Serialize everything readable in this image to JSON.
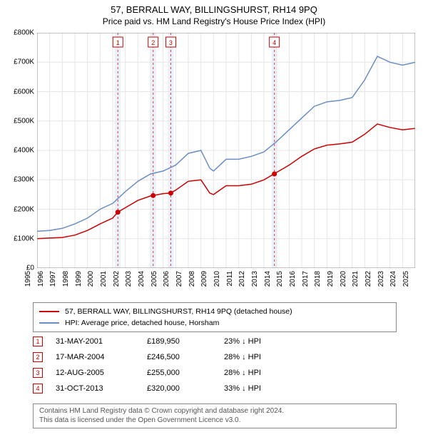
{
  "title": "57, BERRALL WAY, BILLINGSHURST, RH14 9PQ",
  "subtitle": "Price paid vs. HM Land Registry's House Price Index (HPI)",
  "chart": {
    "type": "line",
    "background_color": "#ffffff",
    "plot_border_color": "#888888",
    "grid_color": "#e6e6e6",
    "ylim": [
      0,
      800000
    ],
    "ytick_step": 100000,
    "yticks": [
      "£0",
      "£100K",
      "£200K",
      "£300K",
      "£400K",
      "£500K",
      "£600K",
      "£700K",
      "£800K"
    ],
    "xlim": [
      1995,
      2025
    ],
    "xticks": [
      "1995",
      "1996",
      "1997",
      "1998",
      "1999",
      "2000",
      "2001",
      "2002",
      "2003",
      "2004",
      "2005",
      "2006",
      "2007",
      "2008",
      "2009",
      "2010",
      "2011",
      "2012",
      "2013",
      "2014",
      "2015",
      "2016",
      "2017",
      "2018",
      "2019",
      "2020",
      "2021",
      "2022",
      "2023",
      "2024",
      "2025"
    ],
    "label_fontsize": 10,
    "line_width": 1.5,
    "event_band_color": "#eaf1fb",
    "event_line_color": "#d43f3a",
    "event_line_dash": "3,3",
    "series": [
      {
        "name": "hpi",
        "color": "#6b8ec4",
        "legend": "HPI: Average price, detached house, Horsham",
        "points": [
          [
            1995,
            125000
          ],
          [
            1996,
            128000
          ],
          [
            1997,
            135000
          ],
          [
            1998,
            150000
          ],
          [
            1999,
            170000
          ],
          [
            2000,
            200000
          ],
          [
            2001,
            220000
          ],
          [
            2002,
            260000
          ],
          [
            2003,
            295000
          ],
          [
            2004,
            320000
          ],
          [
            2005,
            330000
          ],
          [
            2006,
            350000
          ],
          [
            2007,
            390000
          ],
          [
            2008,
            400000
          ],
          [
            2008.7,
            340000
          ],
          [
            2009,
            330000
          ],
          [
            2010,
            370000
          ],
          [
            2011,
            370000
          ],
          [
            2012,
            380000
          ],
          [
            2013,
            395000
          ],
          [
            2014,
            430000
          ],
          [
            2015,
            470000
          ],
          [
            2016,
            510000
          ],
          [
            2017,
            550000
          ],
          [
            2018,
            565000
          ],
          [
            2019,
            570000
          ],
          [
            2020,
            580000
          ],
          [
            2021,
            640000
          ],
          [
            2022,
            720000
          ],
          [
            2023,
            700000
          ],
          [
            2024,
            690000
          ],
          [
            2025,
            700000
          ]
        ]
      },
      {
        "name": "property",
        "color": "#cc0000",
        "legend": "57, BERRALL WAY, BILLINGSHURST, RH14 9PQ (detached house)",
        "points": [
          [
            1995,
            100000
          ],
          [
            1996,
            102000
          ],
          [
            1997,
            104000
          ],
          [
            1998,
            112000
          ],
          [
            1999,
            128000
          ],
          [
            2000,
            150000
          ],
          [
            2001,
            170000
          ],
          [
            2001.4,
            190000
          ],
          [
            2002,
            205000
          ],
          [
            2003,
            230000
          ],
          [
            2004,
            245000
          ],
          [
            2004.2,
            246500
          ],
          [
            2005,
            253000
          ],
          [
            2005.6,
            255000
          ],
          [
            2006,
            265000
          ],
          [
            2007,
            295000
          ],
          [
            2008,
            300000
          ],
          [
            2008.7,
            255000
          ],
          [
            2009,
            250000
          ],
          [
            2010,
            280000
          ],
          [
            2011,
            280000
          ],
          [
            2012,
            285000
          ],
          [
            2013,
            300000
          ],
          [
            2013.8,
            320000
          ],
          [
            2014,
            325000
          ],
          [
            2015,
            350000
          ],
          [
            2016,
            380000
          ],
          [
            2017,
            405000
          ],
          [
            2018,
            418000
          ],
          [
            2019,
            422000
          ],
          [
            2020,
            428000
          ],
          [
            2021,
            455000
          ],
          [
            2022,
            490000
          ],
          [
            2023,
            478000
          ],
          [
            2024,
            470000
          ],
          [
            2025,
            475000
          ]
        ]
      }
    ],
    "events": [
      {
        "n": "1",
        "x": 2001.41,
        "date": "31-MAY-2001",
        "price": "£189,950",
        "diff": "23% ↓ HPI",
        "marker_color": "#cc0000"
      },
      {
        "n": "2",
        "x": 2004.21,
        "date": "17-MAR-2004",
        "price": "£246,500",
        "diff": "28% ↓ HPI",
        "marker_color": "#cc0000"
      },
      {
        "n": "3",
        "x": 2005.61,
        "date": "12-AUG-2005",
        "price": "£255,000",
        "diff": "28% ↓ HPI",
        "marker_color": "#cc0000"
      },
      {
        "n": "4",
        "x": 2013.83,
        "date": "31-OCT-2013",
        "price": "£320,000",
        "diff": "33% ↓ HPI",
        "marker_color": "#cc0000"
      }
    ],
    "markers": [
      {
        "x": 2001.41,
        "y": 189950
      },
      {
        "x": 2004.21,
        "y": 246500
      },
      {
        "x": 2005.61,
        "y": 255000
      },
      {
        "x": 2013.83,
        "y": 320000
      }
    ]
  },
  "footer": {
    "line1": "Contains HM Land Registry data © Crown copyright and database right 2024.",
    "line2": "This data is licensed under the Open Government Licence v3.0."
  }
}
